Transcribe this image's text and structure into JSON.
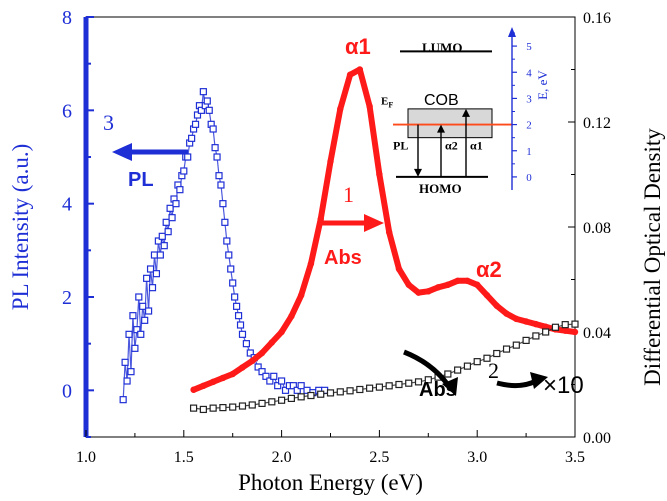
{
  "chart_data": {
    "type": "scatter",
    "xlabel": "Photon Energy (eV)",
    "ylabel_left": "PL Intensity (a.u.)",
    "ylabel_right": "Differential Optical Density",
    "xlim": [
      1.0,
      3.5
    ],
    "ylim_left": [
      -1,
      8
    ],
    "ylim_right": [
      0.0,
      0.16
    ],
    "x_ticks": [
      "1.0",
      "1.5",
      "2.0",
      "2.5",
      "3.0",
      "3.5"
    ],
    "y_left_ticks": [
      "0",
      "2",
      "4",
      "6",
      "8"
    ],
    "y_right_ticks": [
      "0.00",
      "0.04",
      "0.08",
      "0.12",
      "0.16"
    ],
    "colors": {
      "pl": "#1f2fd6",
      "abs1": "#ff1a1a",
      "abs2": "#222222",
      "left_axis": "#1f2fd6",
      "inset_axis": "#1f2fd6",
      "fermi": "#ff4a1a",
      "cob_fill": "#d8d8d8"
    },
    "series": [
      {
        "id": "pl",
        "axis": "left",
        "marker": "open-square",
        "x": [
          1.19,
          1.2,
          1.21,
          1.22,
          1.23,
          1.24,
          1.25,
          1.26,
          1.27,
          1.28,
          1.29,
          1.3,
          1.31,
          1.32,
          1.33,
          1.34,
          1.35,
          1.36,
          1.37,
          1.38,
          1.39,
          1.4,
          1.41,
          1.42,
          1.43,
          1.44,
          1.45,
          1.46,
          1.47,
          1.48,
          1.49,
          1.5,
          1.51,
          1.52,
          1.53,
          1.54,
          1.55,
          1.56,
          1.57,
          1.58,
          1.59,
          1.6,
          1.61,
          1.62,
          1.63,
          1.64,
          1.65,
          1.66,
          1.67,
          1.68,
          1.69,
          1.7,
          1.71,
          1.72,
          1.73,
          1.74,
          1.75,
          1.76,
          1.77,
          1.78,
          1.79,
          1.8,
          1.82,
          1.84,
          1.86,
          1.88,
          1.9,
          1.92,
          1.94,
          1.96,
          1.98,
          2.0,
          2.02,
          2.04,
          2.06,
          2.08,
          2.1,
          2.13,
          2.16,
          2.19,
          2.22
        ],
        "y": [
          -0.2,
          0.6,
          0.2,
          1.2,
          0.4,
          1.6,
          0.9,
          1.3,
          2.0,
          1.2,
          1.8,
          1.5,
          2.4,
          1.7,
          2.6,
          2.2,
          2.9,
          2.5,
          3.2,
          2.9,
          3.3,
          3.1,
          3.6,
          3.4,
          3.9,
          3.7,
          4.1,
          4.0,
          4.4,
          4.3,
          4.6,
          4.7,
          5.0,
          5.0,
          5.3,
          5.4,
          5.6,
          5.7,
          5.9,
          6.1,
          6.0,
          6.4,
          6.1,
          6.2,
          6.0,
          5.7,
          5.6,
          5.2,
          5.0,
          4.6,
          4.4,
          4.0,
          3.6,
          3.2,
          2.9,
          2.6,
          2.3,
          2.0,
          1.8,
          1.6,
          1.4,
          1.2,
          1.0,
          0.8,
          0.7,
          0.5,
          0.4,
          0.3,
          0.2,
          0.3,
          0.1,
          0.2,
          0.0,
          0.1,
          0.1,
          0.0,
          0.1,
          0.0,
          -0.05,
          0.0,
          0.0
        ]
      },
      {
        "id": "abs1",
        "axis": "right",
        "marker": "filled-circle",
        "x": [
          1.55,
          1.6,
          1.65,
          1.7,
          1.75,
          1.8,
          1.85,
          1.9,
          1.95,
          2.0,
          2.05,
          2.1,
          2.15,
          2.2,
          2.25,
          2.3,
          2.35,
          2.4,
          2.45,
          2.5,
          2.55,
          2.6,
          2.65,
          2.7,
          2.75,
          2.8,
          2.85,
          2.9,
          2.95,
          3.0,
          3.05,
          3.1,
          3.15,
          3.2,
          3.25,
          3.3,
          3.35,
          3.4,
          3.45,
          3.5
        ],
        "y": [
          0.018,
          0.0195,
          0.021,
          0.0225,
          0.024,
          0.0265,
          0.029,
          0.032,
          0.036,
          0.04,
          0.046,
          0.054,
          0.066,
          0.083,
          0.105,
          0.125,
          0.138,
          0.14,
          0.126,
          0.1,
          0.078,
          0.064,
          0.058,
          0.055,
          0.0555,
          0.057,
          0.058,
          0.0595,
          0.0595,
          0.058,
          0.054,
          0.05,
          0.047,
          0.045,
          0.044,
          0.043,
          0.042,
          0.041,
          0.0405,
          0.04
        ]
      },
      {
        "id": "abs2",
        "axis": "right",
        "marker": "open-square",
        "x": [
          1.55,
          1.6,
          1.65,
          1.7,
          1.75,
          1.8,
          1.85,
          1.9,
          1.95,
          2.0,
          2.05,
          2.1,
          2.15,
          2.2,
          2.25,
          2.3,
          2.35,
          2.4,
          2.45,
          2.5,
          2.55,
          2.6,
          2.65,
          2.7,
          2.75,
          2.8,
          2.85,
          2.9,
          2.95,
          3.0,
          3.05,
          3.1,
          3.15,
          3.2,
          3.25,
          3.3,
          3.35,
          3.4,
          3.45,
          3.5
        ],
        "y": [
          0.011,
          0.0105,
          0.011,
          0.0112,
          0.0114,
          0.0118,
          0.0122,
          0.0128,
          0.0134,
          0.014,
          0.0147,
          0.0153,
          0.0158,
          0.0163,
          0.0168,
          0.0172,
          0.0176,
          0.0181,
          0.0186,
          0.019,
          0.0195,
          0.02,
          0.0205,
          0.021,
          0.0218,
          0.0228,
          0.024,
          0.0255,
          0.027,
          0.0287,
          0.03,
          0.0318,
          0.0335,
          0.035,
          0.0368,
          0.0385,
          0.04,
          0.0418,
          0.0428,
          0.043
        ]
      }
    ],
    "annotations": {
      "pl_number": "3",
      "pl_label": "PL",
      "abs1_number": "1",
      "abs1_label": "Abs",
      "abs2_number": "2",
      "abs2_label": "Abs",
      "abs2_scale": "×10",
      "alpha1": "α1",
      "alpha2": "α2"
    },
    "inset": {
      "lumo": "LUMO",
      "cob": "COB",
      "homo": "HOMO",
      "ef_main": "E",
      "ef_sub": "F",
      "pl": "PL",
      "alpha2": "α2",
      "alpha1": "α1",
      "axis_label": "E, eV",
      "ylim": [
        -0.5,
        5.5
      ],
      "ticks": [
        "0",
        "1",
        "2",
        "3",
        "4",
        "5"
      ],
      "levels": {
        "homo": 0.0,
        "fermi": 2.0,
        "cob_bottom": 1.5,
        "cob_top": 2.6,
        "lumo": 4.8
      }
    }
  }
}
